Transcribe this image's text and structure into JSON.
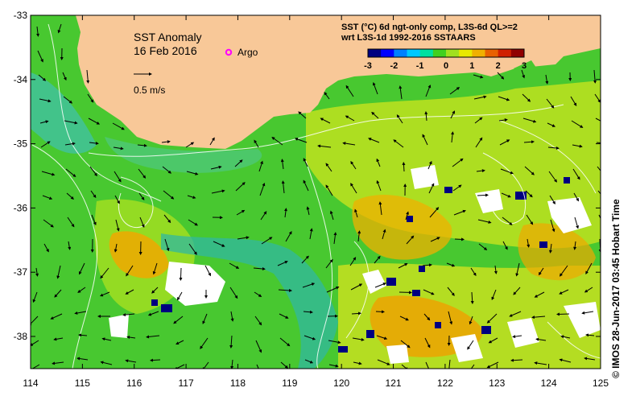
{
  "map": {
    "title": "SST Anomaly",
    "date": "16 Feb 2016",
    "argo_label": "Argo",
    "velocity_scale_label": "0.5 m/s",
    "product_line1": "SST (°C) 6d ngt-only comp, L3S-6d QL>=2",
    "product_line2": "wrt L3S-1d 1992-2016 SSTAARS",
    "credit": "© IMOS 28-Jun-2017 03:45 Hobart Time",
    "colorbar": {
      "ticks": [
        "-3",
        "-2",
        "-1",
        "0",
        "1",
        "2",
        "3"
      ],
      "colors": [
        "#000080",
        "#0000ff",
        "#0080ff",
        "#00c8ff",
        "#00e0a0",
        "#40d020",
        "#a0e020",
        "#e8e800",
        "#f0b000",
        "#e86000",
        "#d02000",
        "#900000"
      ]
    },
    "x_ticks": [
      "114",
      "115",
      "116",
      "117",
      "118",
      "119",
      "120",
      "121",
      "122",
      "123",
      "124",
      "125"
    ],
    "y_ticks": [
      "-33",
      "-34",
      "-35",
      "-36",
      "-37",
      "-38"
    ],
    "colors": {
      "land": "#f8c898",
      "ocean_base": "#48c830",
      "anomaly_warm": "#f0b000",
      "anomaly_yellow": "#d8e820",
      "anomaly_cool": "#30b8a0",
      "anomaly_cold": "#000080",
      "argo_marker": "#ff00ff"
    }
  }
}
